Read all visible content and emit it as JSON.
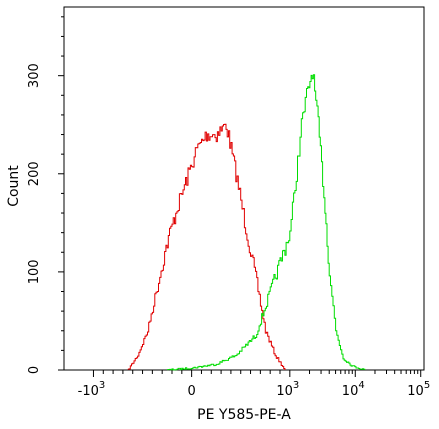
{
  "chart_data": {
    "type": "line",
    "title": "",
    "xlabel": "PE Y585-PE-A",
    "ylabel": "Count",
    "xscale": "biexponential",
    "ylim": [
      0,
      370
    ],
    "grid": false,
    "y_ticks": [
      {
        "value": 0,
        "label": "0"
      },
      {
        "value": 100,
        "label": "100"
      },
      {
        "value": 200,
        "label": "200"
      },
      {
        "value": 300,
        "label": "300"
      }
    ],
    "x_ticks": [
      {
        "value": -1000,
        "base": "-10",
        "exp": "3"
      },
      {
        "value": 0,
        "base": "0",
        "exp": ""
      },
      {
        "value": 1000,
        "base": "10",
        "exp": "3"
      },
      {
        "value": 10000,
        "base": "10",
        "exp": "4"
      },
      {
        "value": 100000,
        "base": "10",
        "exp": "5"
      }
    ],
    "series": [
      {
        "color": "#e00000",
        "x": [
          -650,
          -550,
          -450,
          -350,
          -250,
          -150,
          -50,
          50,
          150,
          250,
          350,
          450,
          550,
          650,
          750,
          850,
          950
        ],
        "y": [
          0,
          15,
          40,
          85,
          130,
          165,
          195,
          225,
          240,
          240,
          250,
          200,
          145,
          95,
          40,
          15,
          0
        ]
      },
      {
        "color": "#00dd00",
        "x": [
          -250,
          0,
          250,
          450,
          650,
          800,
          1000,
          1250,
          1500,
          1800,
          2200,
          2700,
          3300,
          4000,
          5000,
          6500,
          9000,
          14000
        ],
        "y": [
          0,
          2,
          6,
          15,
          35,
          80,
          140,
          200,
          250,
          280,
          305,
          250,
          180,
          100,
          40,
          12,
          4,
          0
        ]
      }
    ]
  }
}
